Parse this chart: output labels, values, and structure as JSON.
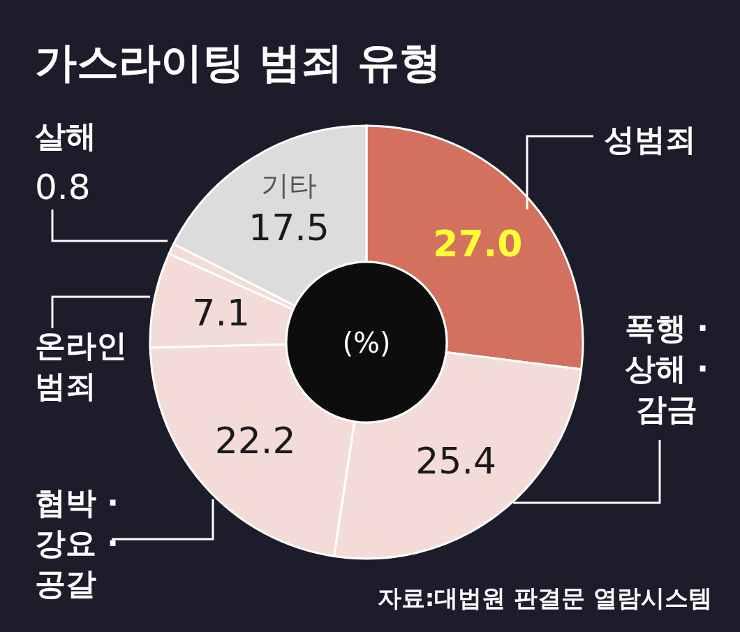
{
  "chart_data": {
    "type": "donut",
    "title": "가스라이팅 범죄 유형",
    "categories": [
      "성범죄",
      "폭행 · 상해 · 감금",
      "협박 · 강요 · 공갈",
      "온라인 범죄",
      "살해",
      "기타"
    ],
    "values": [
      27.0,
      25.4,
      22.2,
      7.1,
      0.8,
      17.5
    ],
    "value_labels": [
      "27.0",
      "25.4",
      "22.2",
      "7.1",
      "0.8",
      "17.5"
    ],
    "colors": [
      "#d4705e",
      "#f3dcd8",
      "#f3dcd8",
      "#f3dcd8",
      "#f3dcd8",
      "#dcdcdc"
    ],
    "annotations": [
      "(%)",
      "자료:대법원 판결문 열람시스템"
    ]
  }
}
